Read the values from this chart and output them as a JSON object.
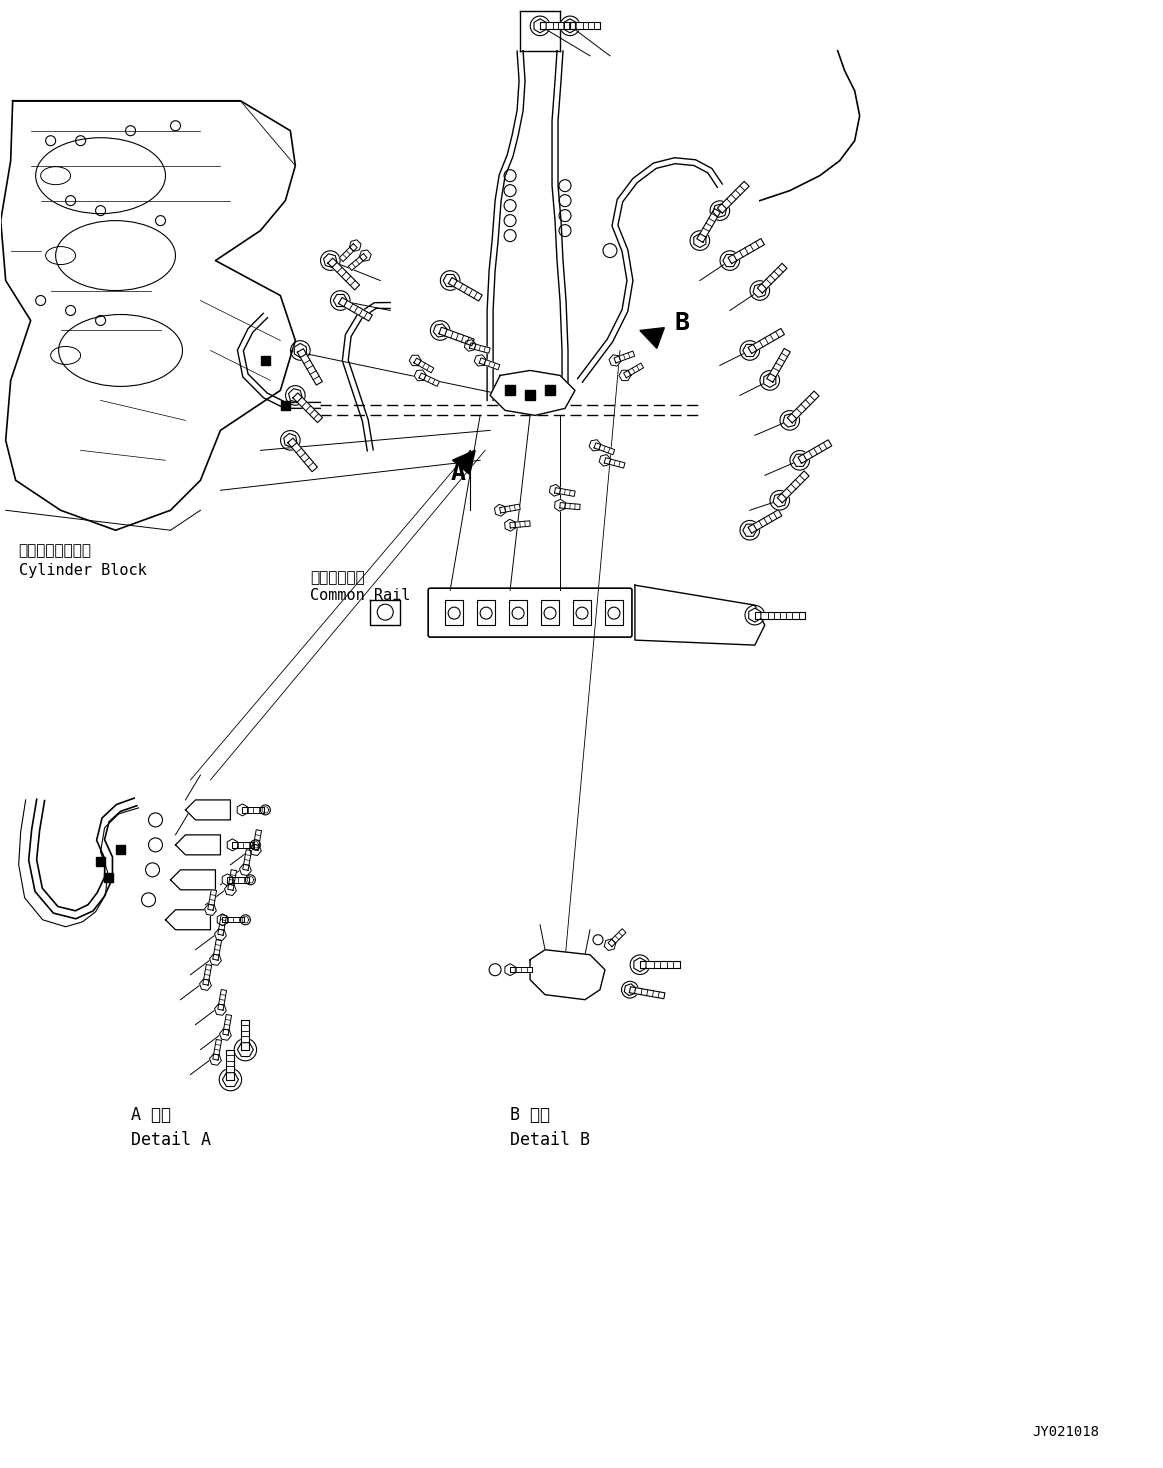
{
  "title_code": "JY021018",
  "background_color": "#ffffff",
  "line_color": "#000000",
  "figsize": [
    11.63,
    14.68
  ],
  "dpi": 100,
  "labels": {
    "cylinder_block_jp": "シリンダブロック",
    "cylinder_block_en": "Cylinder Block",
    "common_rail_jp": "コモンレール",
    "common_rail_en": "Common Rail",
    "detail_a_jp": "A 詳細",
    "detail_a_en": "Detail A",
    "detail_b_jp": "B 詳細",
    "detail_b_en": "Detail B",
    "label_a": "A",
    "label_b": "B"
  }
}
